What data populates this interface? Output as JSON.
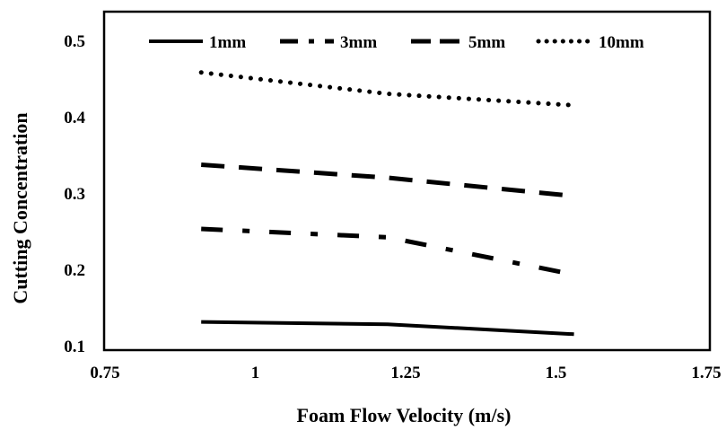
{
  "chart_data": {
    "type": "line",
    "title": "",
    "xlabel": "Foam Flow Velocity (m/s)",
    "ylabel": "Cutting  Concentration",
    "xlim": [
      0.75,
      1.75
    ],
    "ylim": [
      0.1,
      0.5
    ],
    "xticks": [
      "0.75",
      "1",
      "1.25",
      "1.5",
      "1.75"
    ],
    "yticks": [
      "0.1",
      "0.2",
      "0.3",
      "0.4",
      "0.5"
    ],
    "x_tick_values": [
      0.75,
      1,
      1.25,
      1.5,
      1.75
    ],
    "y_tick_values": [
      0.1,
      0.2,
      0.3,
      0.4,
      0.5
    ],
    "grid": false,
    "legend_position": "top",
    "series": [
      {
        "name": "1mm",
        "style": "solid",
        "color": "#000000",
        "x": [
          0.91,
          1.22,
          1.53
        ],
        "y": [
          0.131,
          0.128,
          0.115
        ]
      },
      {
        "name": "3mm",
        "style": "dash-dot",
        "color": "#000000",
        "x": [
          0.91,
          1.22,
          1.53
        ],
        "y": [
          0.253,
          0.242,
          0.193
        ]
      },
      {
        "name": "5mm",
        "style": "dash",
        "color": "#000000",
        "x": [
          0.91,
          1.22,
          1.53
        ],
        "y": [
          0.337,
          0.32,
          0.296
        ]
      },
      {
        "name": "10mm",
        "style": "dot",
        "color": "#000000",
        "x": [
          0.91,
          1.22,
          1.53
        ],
        "y": [
          0.458,
          0.43,
          0.415
        ]
      }
    ]
  }
}
